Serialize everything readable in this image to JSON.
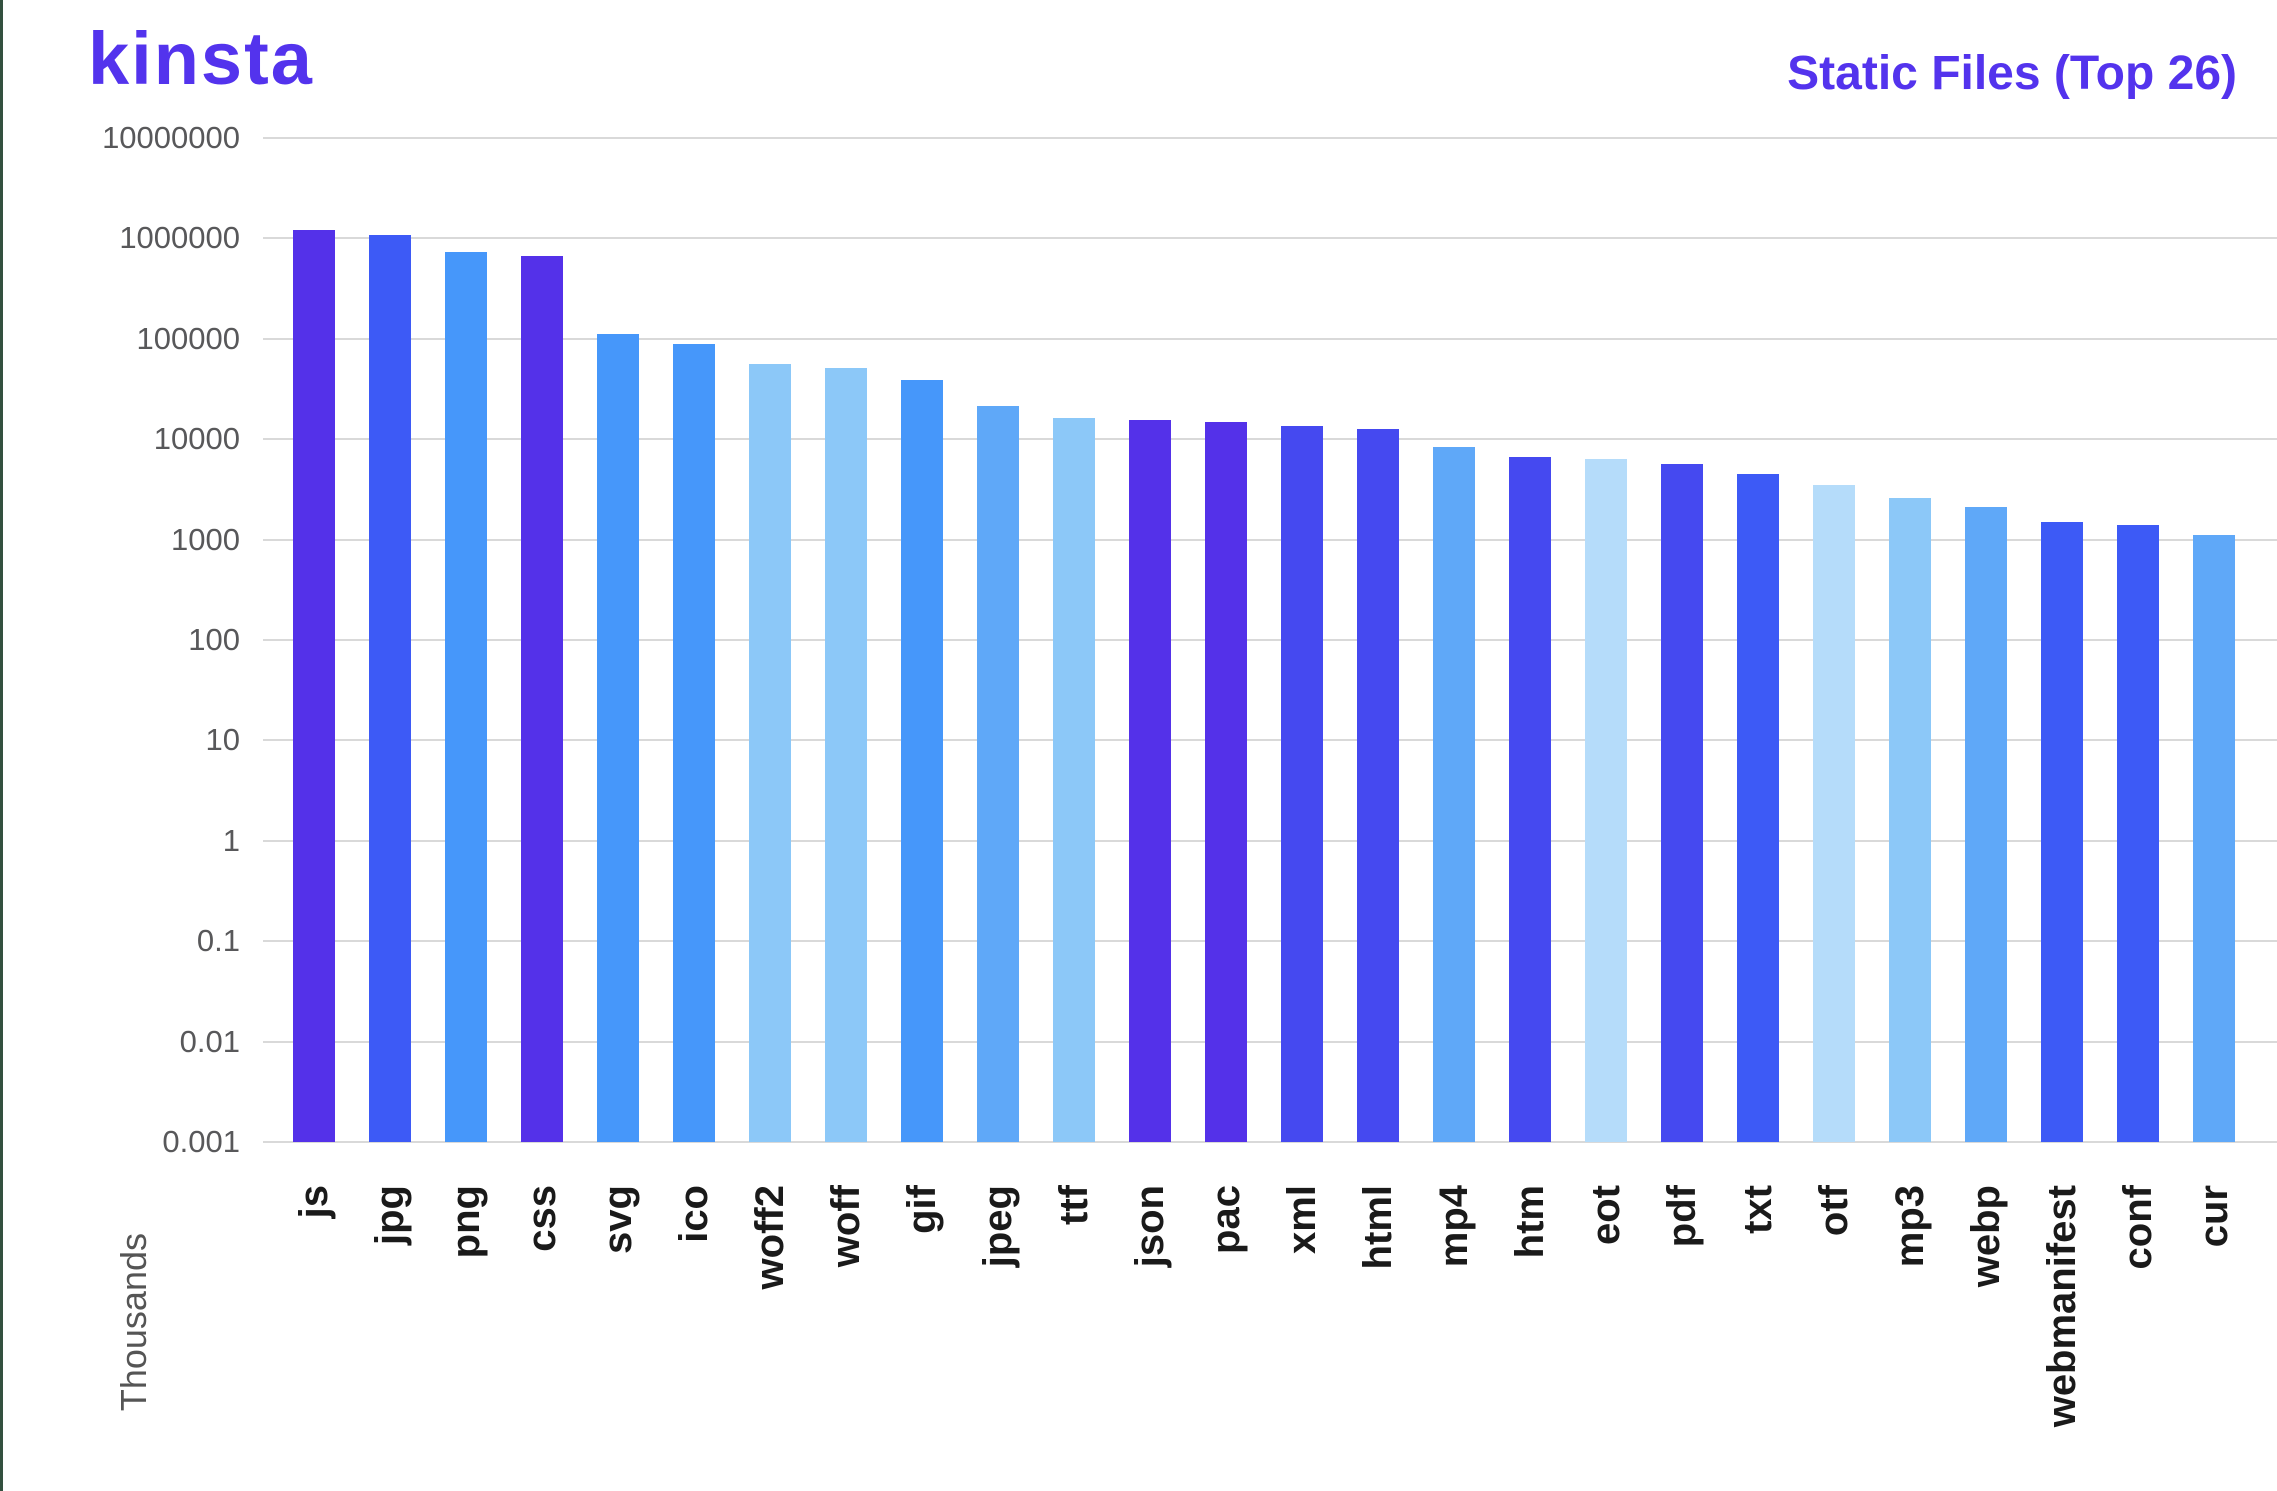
{
  "page": {
    "left_edge_color": "#33503f",
    "background": "#ffffff"
  },
  "header": {
    "logo_text": "kinsta",
    "brand_color": "#5333ed",
    "title": "Static Files (Top 26)"
  },
  "chart_data": {
    "type": "bar",
    "title": "Static Files (Top 26)",
    "y_axis_title": "Thousands",
    "y_scale": "log10",
    "ylim": [
      0.001,
      10000000
    ],
    "y_tick_labels": [
      "10000000",
      "1000000",
      "100000",
      "10000",
      "1000",
      "100",
      "10",
      "1",
      "0.1",
      "0.01",
      "0.001"
    ],
    "grid": "horizontal-only",
    "legend": "none",
    "categories": [
      "js",
      "jpg",
      "png",
      "css",
      "svg",
      "ico",
      "woff2",
      "woff",
      "gif",
      "jpeg",
      "ttf",
      "json",
      "pac",
      "xml",
      "html",
      "mp4",
      "htm",
      "eot",
      "pdf",
      "txt",
      "otf",
      "mp3",
      "webp",
      "webmanifest",
      "conf",
      "cur"
    ],
    "values": [
      1200000,
      1080000,
      740000,
      670000,
      112000,
      89000,
      56000,
      51000,
      39000,
      21500,
      16400,
      15400,
      14700,
      13600,
      12700,
      8300,
      6600,
      6400,
      5600,
      4500,
      3500,
      2600,
      2100,
      1510,
      1400,
      1100
    ],
    "bar_color_keys": [
      "indigo",
      "blue",
      "sky",
      "indigo",
      "sky",
      "sky",
      "light",
      "light",
      "sky",
      "sky2",
      "light",
      "indigo",
      "indigo",
      "blueviolet",
      "blueviolet",
      "sky2",
      "blueviolet",
      "pale",
      "blueviolet",
      "blue",
      "pale",
      "light",
      "sky2",
      "blue",
      "blue",
      "sky2"
    ],
    "palette": {
      "indigo": "#5431e9",
      "blue": "#3d5af6",
      "blueviolet": "#4549f0",
      "sky": "#4697fa",
      "sky2": "#5fa8f8",
      "light": "#8cc8f8",
      "pale": "#b5dcfa"
    },
    "gridline_color": "#d9d9d9",
    "y_tick_color": "#58585a",
    "x_label_color": "#1a1a1a"
  }
}
